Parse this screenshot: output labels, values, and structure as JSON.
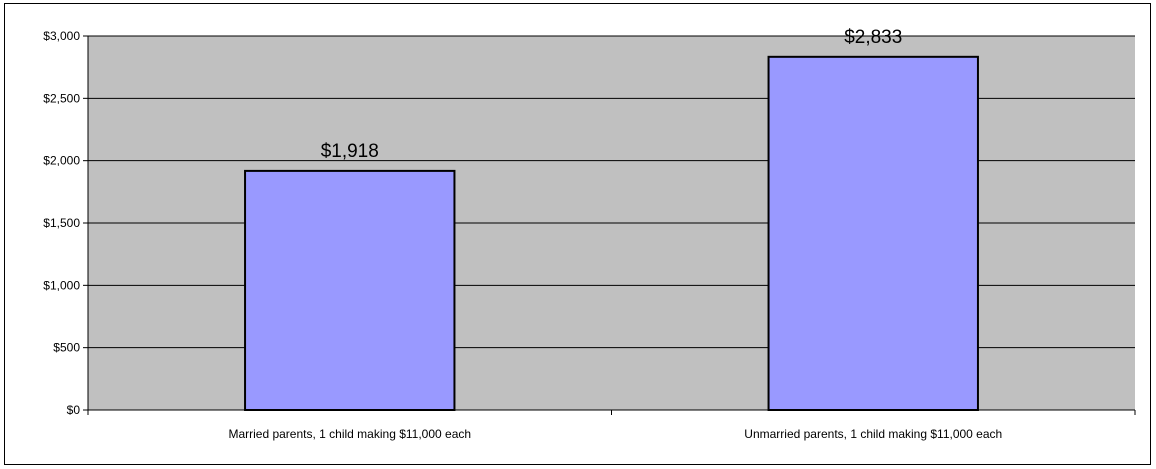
{
  "chart_data": {
    "type": "bar",
    "categories": [
      "Married parents, 1 child making $11,000 each",
      "Unmarried parents, 1 child making $11,000 each"
    ],
    "values": [
      1918,
      2833
    ],
    "data_labels": [
      "$1,918",
      "$2,833"
    ],
    "ylim": [
      0,
      3000
    ],
    "ytick_values": [
      0,
      500,
      1000,
      1500,
      2000,
      2500,
      3000
    ],
    "ytick_labels": [
      "$0",
      "$500",
      "$1,000",
      "$1,500",
      "$2,000",
      "$2,500",
      "$3,000"
    ],
    "grid": true,
    "legend": "none"
  },
  "colors": {
    "plot_background": "#c0c0c0",
    "bar_fill": "#9999ff",
    "bar_stroke": "#000000",
    "gridline": "#000000"
  }
}
